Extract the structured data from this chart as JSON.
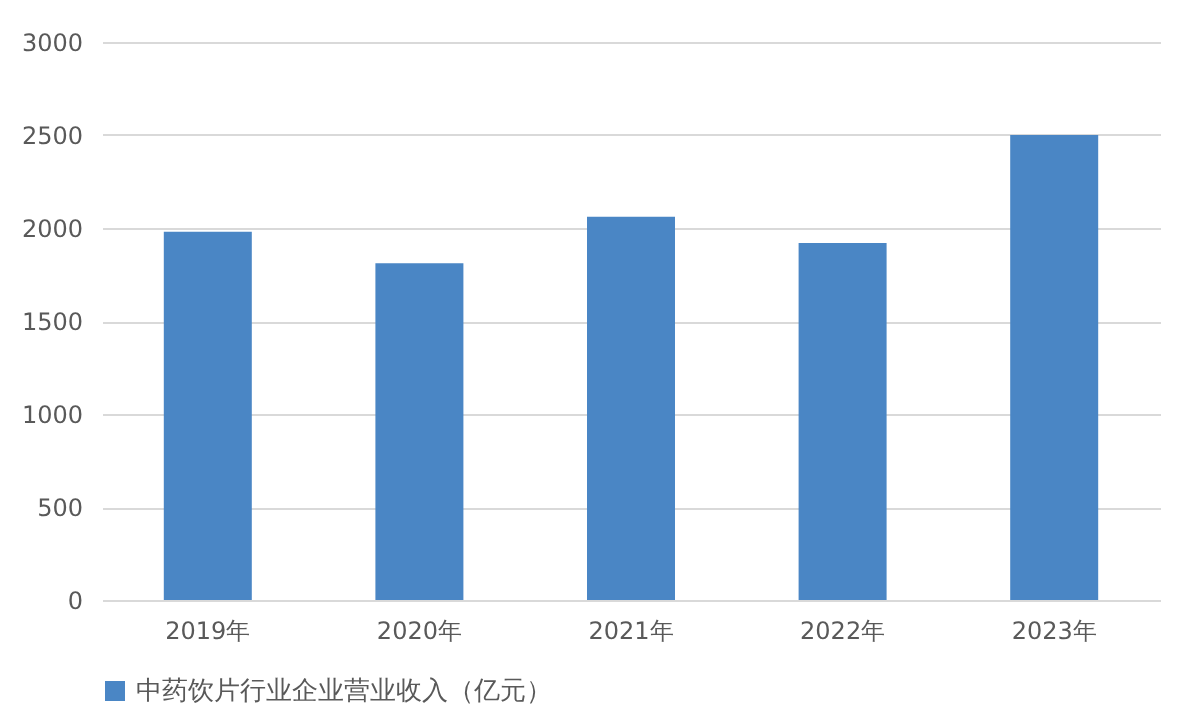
{
  "chart_data": {
    "type": "bar",
    "categories": [
      "2019年",
      "2020年",
      "2021年",
      "2022年",
      "2023年"
    ],
    "series": [
      {
        "name": "中药饮片行业企业营业收入（亿元）",
        "color": "#4a86c5",
        "values": [
          1980,
          1810,
          2060,
          1920,
          2500
        ]
      }
    ],
    "ylim": [
      0,
      3000
    ],
    "yticks": [
      0,
      500,
      1000,
      1500,
      2000,
      2500,
      3000
    ],
    "grid": "y",
    "legend": "bottom"
  }
}
